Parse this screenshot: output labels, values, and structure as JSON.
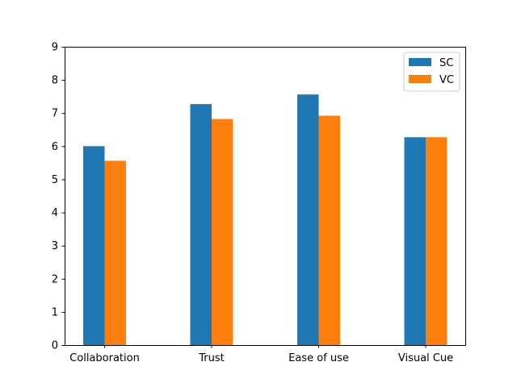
{
  "chart_data": {
    "type": "bar",
    "categories": [
      "Collaboration",
      "Trust",
      "Ease of use",
      "Visual Cue"
    ],
    "series": [
      {
        "name": "SC",
        "color": "#1f77b4",
        "values": [
          6.0,
          7.27,
          7.56,
          6.27
        ]
      },
      {
        "name": "VC",
        "color": "#ff7f0e",
        "values": [
          5.56,
          6.82,
          6.92,
          6.27
        ]
      }
    ],
    "ylim": [
      0,
      9
    ],
    "yticks": [
      0,
      1,
      2,
      3,
      4,
      5,
      6,
      7,
      8,
      9
    ],
    "grid": false,
    "legend_position": "top-right"
  }
}
